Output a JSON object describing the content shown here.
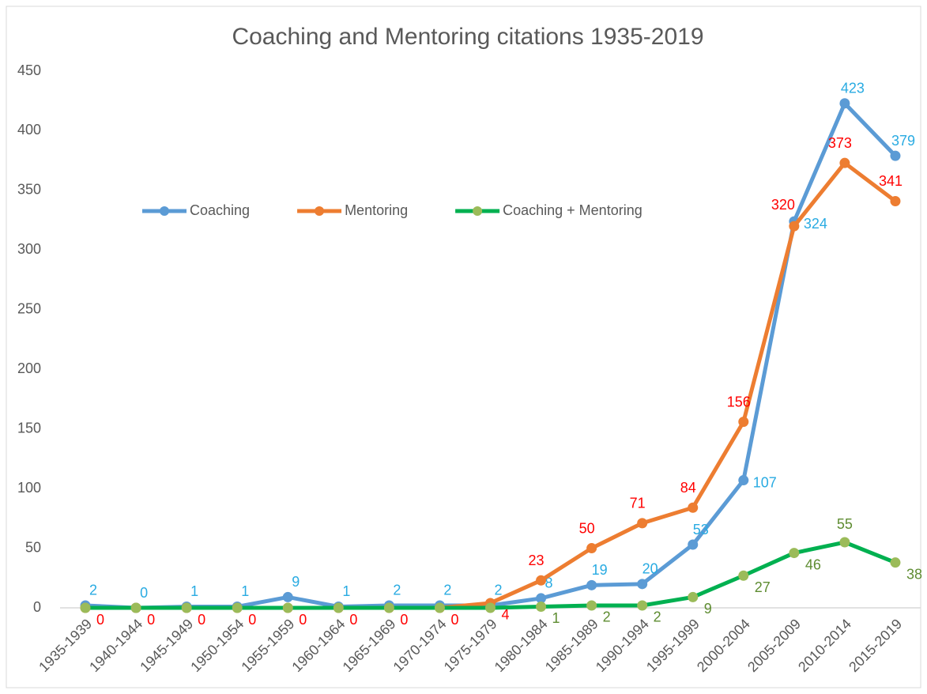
{
  "chart_data": {
    "type": "line",
    "title": "Coaching and Mentoring citations 1935-2019",
    "categories": [
      "1935-1939",
      "1940-1944",
      "1945-1949",
      "1950-1954",
      "1955-1959",
      "1960-1964",
      "1965-1969",
      "1970-1974",
      "1975-1979",
      "1980-1984",
      "1985-1989",
      "1990-1994",
      "1995-1999",
      "2000-2004",
      "2005-2009",
      "2010-2014",
      "2015-2019"
    ],
    "series": [
      {
        "name": "Coaching",
        "color": "#5b9bd5",
        "marker_color": "#5b9bd5",
        "label_color": "#29abe2",
        "values": [
          2,
          0,
          1,
          1,
          9,
          1,
          2,
          2,
          2,
          8,
          19,
          20,
          53,
          107,
          324,
          423,
          379
        ]
      },
      {
        "name": "Mentoring",
        "color": "#ed7d31",
        "marker_color": "#ed7d31",
        "label_color": "#ff0000",
        "values": [
          0,
          0,
          0,
          0,
          0,
          0,
          0,
          0,
          4,
          23,
          50,
          71,
          84,
          156,
          320,
          373,
          341
        ]
      },
      {
        "name": "Coaching + Mentoring",
        "color": "#00b050",
        "marker_color": "#9bbb59",
        "label_color": "#5e8c31",
        "values": [
          0,
          0,
          0,
          0,
          0,
          0,
          0,
          0,
          0,
          1,
          2,
          2,
          9,
          27,
          46,
          55,
          38
        ],
        "value_labels": [
          null,
          null,
          null,
          null,
          null,
          null,
          null,
          null,
          null,
          "1",
          "2",
          "2",
          "9",
          "27",
          "46",
          "55",
          "38"
        ]
      }
    ],
    "ylim": [
      0,
      450
    ],
    "yticks": [
      0,
      50,
      100,
      150,
      200,
      250,
      300,
      350,
      400,
      450
    ],
    "grid": false
  }
}
